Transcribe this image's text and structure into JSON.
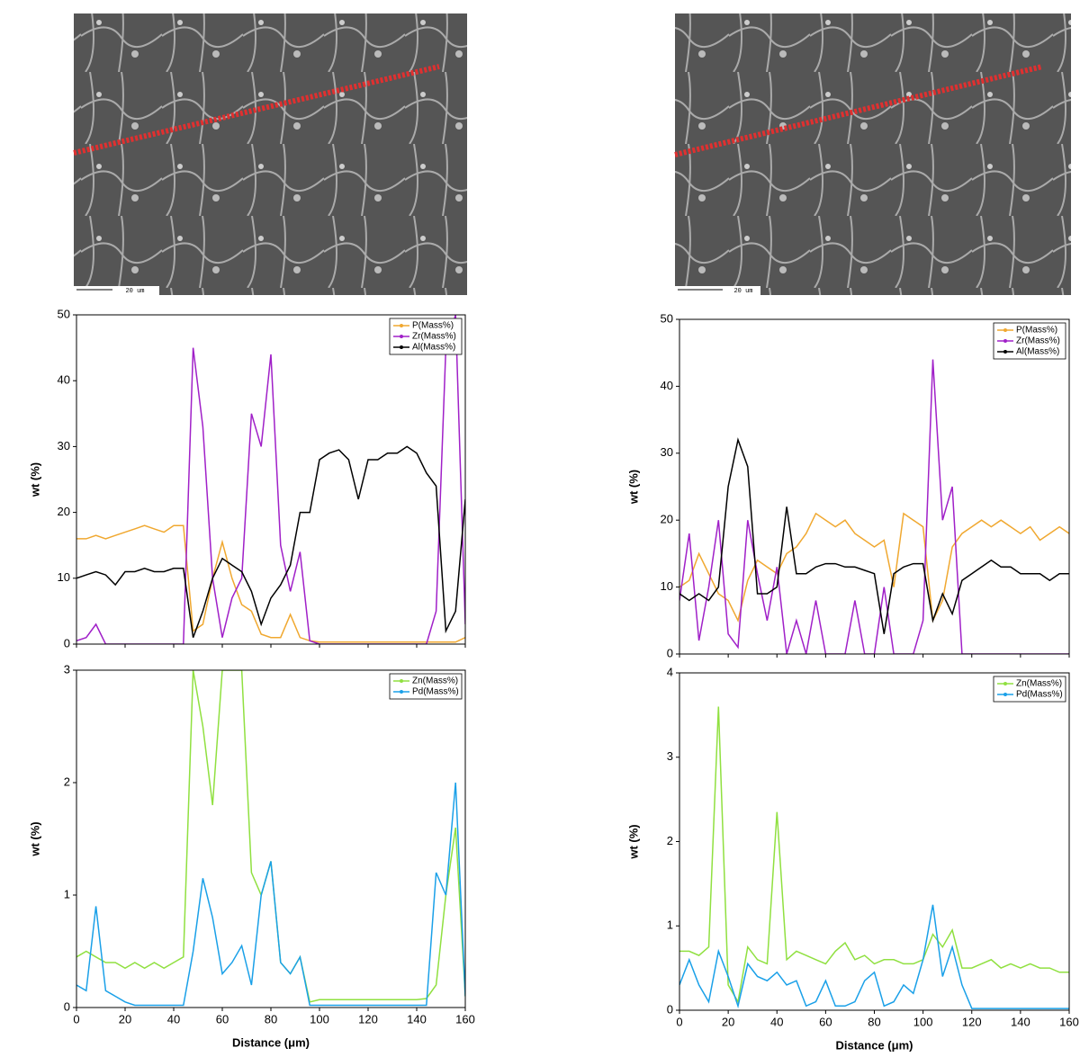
{
  "images": [
    {
      "scale_label": "20 um"
    },
    {
      "scale_label": "20 um"
    }
  ],
  "chart_data": [
    {
      "type": "line",
      "ylabel": "wt (%)",
      "ylim": [
        0,
        50
      ],
      "yticks": [
        0,
        10,
        20,
        30,
        40,
        50
      ],
      "xlim": [
        0,
        160
      ],
      "xticks": [
        0,
        20,
        40,
        60,
        80,
        100,
        120,
        140,
        160
      ],
      "legend": "upper right",
      "x": [
        0,
        4,
        8,
        12,
        16,
        20,
        24,
        28,
        32,
        36,
        40,
        44,
        48,
        52,
        56,
        60,
        64,
        68,
        72,
        76,
        80,
        84,
        88,
        92,
        96,
        100,
        104,
        108,
        112,
        116,
        120,
        124,
        128,
        132,
        136,
        140,
        144,
        148,
        152,
        156,
        160
      ],
      "series": [
        {
          "name": "P(Mass%)",
          "color": "#f0a830",
          "values": [
            16,
            16,
            16.5,
            16,
            16.5,
            17,
            17.5,
            18,
            17.5,
            17,
            18,
            18,
            2,
            3,
            10,
            15.5,
            10,
            6,
            5,
            1.5,
            1,
            1,
            4.5,
            1,
            0.5,
            0.3,
            0.3,
            0.3,
            0.3,
            0.3,
            0.3,
            0.3,
            0.3,
            0.3,
            0.3,
            0.3,
            0.3,
            0.3,
            0.3,
            0.3,
            1
          ]
        },
        {
          "name": "Zr(Mass%)",
          "color": "#a020c8",
          "values": [
            0.5,
            1,
            3,
            0,
            0,
            0,
            0,
            0,
            0,
            0,
            0,
            0,
            45,
            33,
            10,
            1,
            7,
            10,
            35,
            30,
            44,
            15,
            8,
            14,
            0.5,
            0,
            0,
            0,
            0,
            0,
            0,
            0,
            0,
            0,
            0,
            0,
            0,
            5,
            45,
            50,
            3
          ]
        },
        {
          "name": "Al(Mass%)",
          "color": "#000000",
          "values": [
            10,
            10.5,
            11,
            10.5,
            9,
            11,
            11,
            11.5,
            11,
            11,
            11.5,
            11.5,
            1,
            5,
            10,
            13,
            12,
            11,
            8,
            3,
            7,
            9,
            12,
            20,
            20,
            28,
            29,
            29.5,
            28,
            22,
            28,
            28,
            29,
            29,
            30,
            29,
            26,
            24,
            2,
            5,
            22
          ]
        }
      ]
    },
    {
      "type": "line",
      "ylabel": "wt (%)",
      "xlabel": "Distance (μm)",
      "ylim": [
        0,
        3
      ],
      "yticks": [
        0,
        1,
        2,
        3
      ],
      "xlim": [
        0,
        160
      ],
      "xticks": [
        0,
        20,
        40,
        60,
        80,
        100,
        120,
        140,
        160
      ],
      "legend": "upper right",
      "x": [
        0,
        4,
        8,
        12,
        16,
        20,
        24,
        28,
        32,
        36,
        40,
        44,
        48,
        52,
        56,
        60,
        64,
        68,
        72,
        76,
        80,
        84,
        88,
        92,
        96,
        100,
        104,
        108,
        112,
        116,
        120,
        124,
        128,
        132,
        136,
        140,
        144,
        148,
        152,
        156,
        160
      ],
      "series": [
        {
          "name": "Zn(Mass%)",
          "color": "#90e040",
          "values": [
            0.45,
            0.5,
            0.45,
            0.4,
            0.4,
            0.35,
            0.4,
            0.35,
            0.4,
            0.35,
            0.4,
            0.45,
            3,
            2.5,
            1.8,
            3,
            3,
            3,
            1.2,
            1,
            1.3,
            0.4,
            0.3,
            0.45,
            0.05,
            0.07,
            0.07,
            0.07,
            0.07,
            0.07,
            0.07,
            0.07,
            0.07,
            0.07,
            0.07,
            0.07,
            0.08,
            0.2,
            1,
            1.6,
            0.1
          ]
        },
        {
          "name": "Pd(Mass%)",
          "color": "#1aa0e8",
          "values": [
            0.2,
            0.15,
            0.9,
            0.15,
            0.1,
            0.05,
            0.02,
            0.02,
            0.02,
            0.02,
            0.02,
            0.02,
            0.5,
            1.15,
            0.8,
            0.3,
            0.4,
            0.55,
            0.2,
            1,
            1.3,
            0.4,
            0.3,
            0.45,
            0.02,
            0.02,
            0.02,
            0.02,
            0.02,
            0.02,
            0.02,
            0.02,
            0.02,
            0.02,
            0.02,
            0.02,
            0.02,
            1.2,
            1,
            2,
            0.1
          ]
        }
      ]
    },
    {
      "type": "line",
      "ylabel": "wt (%)",
      "ylim": [
        0,
        50
      ],
      "yticks": [
        0,
        10,
        20,
        30,
        40,
        50
      ],
      "xlim": [
        0,
        160
      ],
      "xticks": [
        0,
        20,
        40,
        60,
        80,
        100,
        120,
        140,
        160
      ],
      "legend": "upper right",
      "x": [
        0,
        4,
        8,
        12,
        16,
        20,
        24,
        28,
        32,
        36,
        40,
        44,
        48,
        52,
        56,
        60,
        64,
        68,
        72,
        76,
        80,
        84,
        88,
        92,
        96,
        100,
        104,
        108,
        112,
        116,
        120,
        124,
        128,
        132,
        136,
        140,
        144,
        148,
        152,
        156,
        160
      ],
      "series": [
        {
          "name": "P(Mass%)",
          "color": "#f0a830",
          "values": [
            10,
            11,
            15,
            12,
            9,
            8,
            5,
            11,
            14,
            13,
            12,
            15,
            16,
            18,
            21,
            20,
            19,
            20,
            18,
            17,
            16,
            17,
            10,
            21,
            20,
            19,
            5,
            8,
            16,
            18,
            19,
            20,
            19,
            20,
            19,
            18,
            19,
            17,
            18,
            19,
            18
          ]
        },
        {
          "name": "Zr(Mass%)",
          "color": "#a020c8",
          "values": [
            8,
            18,
            2,
            10,
            20,
            3,
            1,
            20,
            12,
            5,
            13,
            0,
            5,
            0,
            8,
            0,
            0,
            0,
            8,
            0,
            0,
            10,
            0,
            0,
            0,
            5,
            44,
            20,
            25,
            0,
            0,
            0,
            0,
            0,
            0,
            0,
            0,
            0,
            0,
            0,
            0
          ]
        },
        {
          "name": "Al(Mass%)",
          "color": "#000000",
          "values": [
            9,
            8,
            9,
            8,
            10,
            25,
            32,
            28,
            9,
            9,
            10,
            22,
            12,
            12,
            13,
            13.5,
            13.5,
            13,
            13,
            12.5,
            12,
            3,
            12,
            13,
            13.5,
            13.5,
            5,
            9,
            6,
            11,
            12,
            13,
            14,
            13,
            13,
            12,
            12,
            12,
            11,
            12,
            12
          ]
        }
      ]
    },
    {
      "type": "line",
      "ylabel": "wt (%)",
      "xlabel": "Distance (μm)",
      "ylim": [
        0,
        4
      ],
      "yticks": [
        0,
        1,
        2,
        3,
        4
      ],
      "xlim": [
        0,
        160
      ],
      "xticks": [
        0,
        20,
        40,
        60,
        80,
        100,
        120,
        140,
        160
      ],
      "legend": "upper right",
      "x": [
        0,
        4,
        8,
        12,
        16,
        20,
        24,
        28,
        32,
        36,
        40,
        44,
        48,
        52,
        56,
        60,
        64,
        68,
        72,
        76,
        80,
        84,
        88,
        92,
        96,
        100,
        104,
        108,
        112,
        116,
        120,
        124,
        128,
        132,
        136,
        140,
        144,
        148,
        152,
        156,
        160
      ],
      "series": [
        {
          "name": "Zn(Mass%)",
          "color": "#90e040",
          "values": [
            0.7,
            0.7,
            0.65,
            0.75,
            3.6,
            0.3,
            0.1,
            0.75,
            0.6,
            0.55,
            2.35,
            0.6,
            0.7,
            0.65,
            0.6,
            0.55,
            0.7,
            0.8,
            0.6,
            0.65,
            0.55,
            0.6,
            0.6,
            0.55,
            0.55,
            0.6,
            0.9,
            0.75,
            0.95,
            0.5,
            0.5,
            0.55,
            0.6,
            0.5,
            0.55,
            0.5,
            0.55,
            0.5,
            0.5,
            0.45,
            0.45
          ]
        },
        {
          "name": "Pd(Mass%)",
          "color": "#1aa0e8",
          "values": [
            0.3,
            0.6,
            0.3,
            0.1,
            0.7,
            0.4,
            0.05,
            0.55,
            0.4,
            0.35,
            0.45,
            0.3,
            0.35,
            0.05,
            0.1,
            0.35,
            0.05,
            0.05,
            0.1,
            0.35,
            0.45,
            0.05,
            0.1,
            0.3,
            0.2,
            0.6,
            1.25,
            0.4,
            0.75,
            0.3,
            0.02,
            0.02,
            0.02,
            0.02,
            0.02,
            0.02,
            0.02,
            0.02,
            0.02,
            0.02,
            0.02
          ]
        }
      ]
    }
  ]
}
